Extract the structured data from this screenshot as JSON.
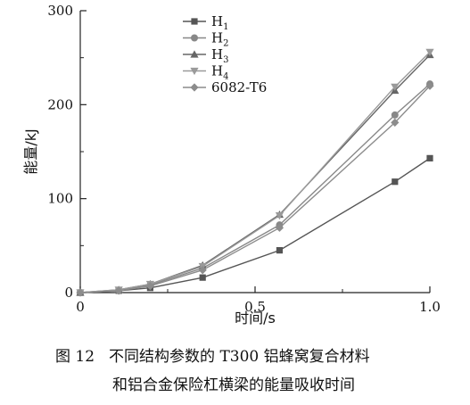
{
  "chart_data": {
    "type": "line",
    "title": "",
    "xlabel": "时间/s",
    "ylabel": "能量/kJ",
    "xlim": [
      0,
      1.0
    ],
    "ylim": [
      0,
      300
    ],
    "xticks": [
      0,
      0.5,
      1.0
    ],
    "xtick_labels": [
      "0",
      "0.5",
      "1.0"
    ],
    "yticks": [
      0,
      100,
      200,
      300
    ],
    "ytick_labels": [
      "0",
      "100",
      "200",
      "300"
    ],
    "grid": false,
    "legend_position": "top-left",
    "x": [
      0,
      0.11,
      0.2,
      0.35,
      0.57,
      0.9,
      1.0
    ],
    "series": [
      {
        "name": "H1",
        "label_main": "H",
        "label_sub": "1",
        "marker": "square",
        "color": "#555555",
        "values": [
          0,
          2,
          5,
          16,
          45,
          118,
          143
        ]
      },
      {
        "name": "H2",
        "label_main": "H",
        "label_sub": "2",
        "marker": "circle",
        "color": "#888888",
        "values": [
          0,
          2,
          8,
          26,
          72,
          189,
          222
        ]
      },
      {
        "name": "H3",
        "label_main": "H",
        "label_sub": "3",
        "marker": "triangle-up",
        "color": "#666666",
        "values": [
          0,
          3,
          9,
          29,
          83,
          215,
          253
        ]
      },
      {
        "name": "H4",
        "label_main": "H",
        "label_sub": "4",
        "marker": "triangle-down",
        "color": "#9a9a9a",
        "values": [
          0,
          3,
          9,
          28,
          82,
          219,
          256
        ]
      },
      {
        "name": "6082-T6",
        "label_main": "6082-T6",
        "label_sub": "",
        "marker": "diamond",
        "color": "#8c8c8c",
        "values": [
          0,
          2,
          7,
          24,
          69,
          181,
          220
        ]
      }
    ]
  },
  "caption": {
    "number": "图 12",
    "line1": "不同结构参数的 T300 铝蜂窝复合材料",
    "line2": "和铝合金保险杠横梁的能量吸收时间"
  }
}
